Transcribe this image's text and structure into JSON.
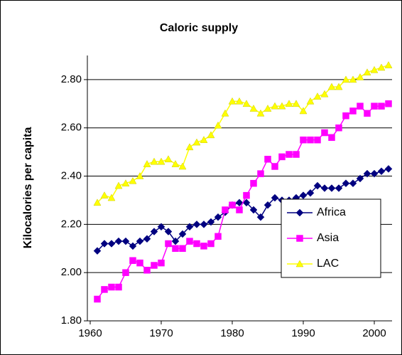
{
  "chart_data": {
    "type": "line",
    "title": "Caloric supply",
    "y_label": "Kilocalories per capita",
    "x": [
      1961,
      1962,
      1963,
      1964,
      1965,
      1966,
      1967,
      1968,
      1969,
      1970,
      1971,
      1972,
      1973,
      1974,
      1975,
      1976,
      1977,
      1978,
      1979,
      1980,
      1981,
      1982,
      1983,
      1984,
      1985,
      1986,
      1987,
      1988,
      1989,
      1990,
      1991,
      1992,
      1993,
      1994,
      1995,
      1996,
      1997,
      1998,
      1999,
      2000,
      2001,
      2002
    ],
    "series": [
      {
        "name": "Africa",
        "color": "#000080",
        "marker": "diamond",
        "values": [
          2.09,
          2.12,
          2.12,
          2.13,
          2.13,
          2.11,
          2.13,
          2.14,
          2.17,
          2.19,
          2.17,
          2.13,
          2.16,
          2.19,
          2.2,
          2.2,
          2.21,
          2.23,
          2.25,
          2.28,
          2.29,
          2.29,
          2.26,
          2.23,
          2.28,
          2.31,
          2.3,
          2.3,
          2.31,
          2.32,
          2.33,
          2.36,
          2.35,
          2.35,
          2.35,
          2.37,
          2.37,
          2.39,
          2.41,
          2.41,
          2.42,
          2.43
        ]
      },
      {
        "name": "Asia",
        "color": "#ff00ff",
        "marker": "square",
        "values": [
          1.89,
          1.93,
          1.94,
          1.94,
          2.0,
          2.05,
          2.04,
          2.01,
          2.03,
          2.04,
          2.12,
          2.1,
          2.1,
          2.13,
          2.12,
          2.11,
          2.12,
          2.15,
          2.26,
          2.28,
          2.26,
          2.32,
          2.37,
          2.41,
          2.47,
          2.44,
          2.48,
          2.49,
          2.49,
          2.55,
          2.55,
          2.55,
          2.58,
          2.56,
          2.6,
          2.65,
          2.67,
          2.69,
          2.66,
          2.69,
          2.69,
          2.7
        ]
      },
      {
        "name": "LAC",
        "color": "#ffff00",
        "marker": "triangle",
        "values": [
          2.29,
          2.32,
          2.31,
          2.36,
          2.37,
          2.38,
          2.4,
          2.45,
          2.46,
          2.46,
          2.47,
          2.45,
          2.44,
          2.52,
          2.54,
          2.55,
          2.57,
          2.61,
          2.66,
          2.71,
          2.71,
          2.7,
          2.68,
          2.66,
          2.68,
          2.69,
          2.69,
          2.7,
          2.7,
          2.67,
          2.71,
          2.73,
          2.74,
          2.77,
          2.77,
          2.8,
          2.8,
          2.81,
          2.83,
          2.84,
          2.85,
          2.86
        ]
      }
    ],
    "xlim": [
      1959.6,
      2002.5
    ],
    "xticks": [
      1960,
      1970,
      1980,
      1990,
      2000
    ],
    "ylim": [
      1.8,
      2.9
    ],
    "yticks": [
      {
        "value": 1.8,
        "label": "1.80"
      },
      {
        "value": 2.0,
        "label": "2.00"
      },
      {
        "value": 2.2,
        "label": "2.20"
      },
      {
        "value": 2.4,
        "label": "2.40"
      },
      {
        "value": 2.6,
        "label": "2.60"
      },
      {
        "value": 2.8,
        "label": "2.80"
      }
    ],
    "grid": true,
    "legend": "lower right"
  }
}
